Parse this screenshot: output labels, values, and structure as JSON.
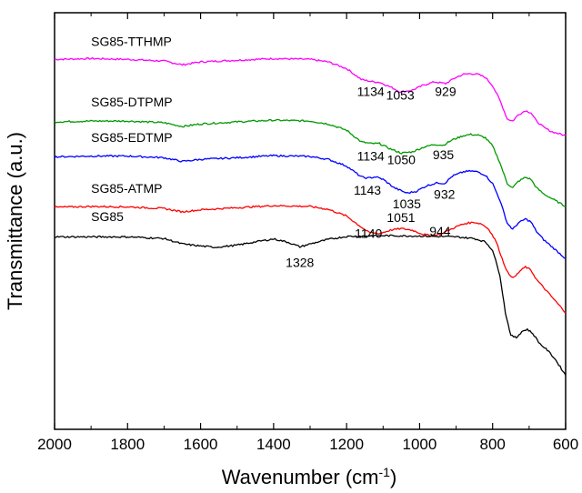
{
  "chart_data": {
    "type": "line",
    "title": "",
    "xlabel": "Wavenumber (cm",
    "xlabel_sup": "-1",
    "xlabel_close": ")",
    "ylabel": "Transmittance (a.u.)",
    "xlim": [
      2000,
      600
    ],
    "x_reversed": true,
    "ylim": [
      0,
      1
    ],
    "grid": false,
    "x_ticks": [
      "2000",
      "1800",
      "1600",
      "1400",
      "1200",
      "1000",
      "800",
      "600"
    ],
    "x_tick_values": [
      2000,
      1800,
      1600,
      1400,
      1200,
      1000,
      800,
      600
    ],
    "series": [
      {
        "name": "SG85-TTHMP",
        "color": "#ff00ff",
        "points": [
          [
            2000,
            0.888
          ],
          [
            1900,
            0.89
          ],
          [
            1800,
            0.888
          ],
          [
            1700,
            0.884
          ],
          [
            1650,
            0.875
          ],
          [
            1600,
            0.882
          ],
          [
            1500,
            0.886
          ],
          [
            1400,
            0.89
          ],
          [
            1300,
            0.888
          ],
          [
            1250,
            0.882
          ],
          [
            1200,
            0.866
          ],
          [
            1160,
            0.84
          ],
          [
            1134,
            0.835
          ],
          [
            1110,
            0.833
          ],
          [
            1080,
            0.822
          ],
          [
            1053,
            0.81
          ],
          [
            1020,
            0.814
          ],
          [
            990,
            0.826
          ],
          [
            960,
            0.834
          ],
          [
            929,
            0.83
          ],
          [
            900,
            0.845
          ],
          [
            880,
            0.852
          ],
          [
            860,
            0.854
          ],
          [
            840,
            0.852
          ],
          [
            820,
            0.845
          ],
          [
            800,
            0.825
          ],
          [
            780,
            0.79
          ],
          [
            760,
            0.745
          ],
          [
            745,
            0.74
          ],
          [
            730,
            0.755
          ],
          [
            710,
            0.765
          ],
          [
            695,
            0.76
          ],
          [
            680,
            0.74
          ],
          [
            660,
            0.725
          ],
          [
            640,
            0.715
          ],
          [
            620,
            0.71
          ],
          [
            600,
            0.705
          ]
        ]
      },
      {
        "name": "SG85-DTPMP",
        "color": "#009900",
        "points": [
          [
            2000,
            0.738
          ],
          [
            1900,
            0.74
          ],
          [
            1800,
            0.74
          ],
          [
            1700,
            0.736
          ],
          [
            1650,
            0.727
          ],
          [
            1600,
            0.733
          ],
          [
            1500,
            0.738
          ],
          [
            1400,
            0.742
          ],
          [
            1300,
            0.74
          ],
          [
            1250,
            0.733
          ],
          [
            1200,
            0.718
          ],
          [
            1160,
            0.69
          ],
          [
            1134,
            0.686
          ],
          [
            1110,
            0.686
          ],
          [
            1080,
            0.673
          ],
          [
            1050,
            0.663
          ],
          [
            1020,
            0.666
          ],
          [
            990,
            0.677
          ],
          [
            960,
            0.684
          ],
          [
            935,
            0.682
          ],
          [
            910,
            0.695
          ],
          [
            880,
            0.705
          ],
          [
            860,
            0.708
          ],
          [
            840,
            0.706
          ],
          [
            820,
            0.7
          ],
          [
            800,
            0.68
          ],
          [
            780,
            0.64
          ],
          [
            760,
            0.59
          ],
          [
            745,
            0.58
          ],
          [
            730,
            0.595
          ],
          [
            710,
            0.605
          ],
          [
            695,
            0.6
          ],
          [
            680,
            0.58
          ],
          [
            660,
            0.565
          ],
          [
            640,
            0.555
          ],
          [
            620,
            0.545
          ],
          [
            600,
            0.535
          ]
        ]
      },
      {
        "name": "SG85-EDTMP",
        "color": "#0000ff",
        "points": [
          [
            2000,
            0.654
          ],
          [
            1900,
            0.656
          ],
          [
            1800,
            0.656
          ],
          [
            1700,
            0.652
          ],
          [
            1650,
            0.643
          ],
          [
            1600,
            0.648
          ],
          [
            1500,
            0.652
          ],
          [
            1400,
            0.657
          ],
          [
            1300,
            0.655
          ],
          [
            1250,
            0.648
          ],
          [
            1200,
            0.632
          ],
          [
            1160,
            0.606
          ],
          [
            1143,
            0.603
          ],
          [
            1120,
            0.606
          ],
          [
            1100,
            0.6
          ],
          [
            1070,
            0.58
          ],
          [
            1035,
            0.567
          ],
          [
            1010,
            0.571
          ],
          [
            980,
            0.585
          ],
          [
            950,
            0.592
          ],
          [
            932,
            0.59
          ],
          [
            910,
            0.608
          ],
          [
            880,
            0.618
          ],
          [
            860,
            0.62
          ],
          [
            840,
            0.618
          ],
          [
            820,
            0.61
          ],
          [
            800,
            0.59
          ],
          [
            780,
            0.55
          ],
          [
            760,
            0.495
          ],
          [
            745,
            0.48
          ],
          [
            730,
            0.495
          ],
          [
            710,
            0.505
          ],
          [
            695,
            0.498
          ],
          [
            680,
            0.475
          ],
          [
            660,
            0.455
          ],
          [
            640,
            0.44
          ],
          [
            620,
            0.425
          ],
          [
            600,
            0.41
          ]
        ]
      },
      {
        "name": "SG85-ATMP",
        "color": "#ff0000",
        "points": [
          [
            2000,
            0.533
          ],
          [
            1900,
            0.535
          ],
          [
            1800,
            0.534
          ],
          [
            1700,
            0.53
          ],
          [
            1650,
            0.522
          ],
          [
            1600,
            0.527
          ],
          [
            1500,
            0.532
          ],
          [
            1400,
            0.537
          ],
          [
            1300,
            0.535
          ],
          [
            1250,
            0.528
          ],
          [
            1200,
            0.512
          ],
          [
            1170,
            0.492
          ],
          [
            1140,
            0.473
          ],
          [
            1110,
            0.47
          ],
          [
            1080,
            0.478
          ],
          [
            1051,
            0.482
          ],
          [
            1020,
            0.478
          ],
          [
            990,
            0.468
          ],
          [
            970,
            0.465
          ],
          [
            944,
            0.468
          ],
          [
            920,
            0.478
          ],
          [
            890,
            0.49
          ],
          [
            870,
            0.495
          ],
          [
            850,
            0.497
          ],
          [
            830,
            0.493
          ],
          [
            810,
            0.48
          ],
          [
            790,
            0.45
          ],
          [
            770,
            0.4
          ],
          [
            755,
            0.37
          ],
          [
            740,
            0.365
          ],
          [
            725,
            0.38
          ],
          [
            710,
            0.39
          ],
          [
            695,
            0.382
          ],
          [
            680,
            0.36
          ],
          [
            660,
            0.34
          ],
          [
            640,
            0.32
          ],
          [
            620,
            0.3
          ],
          [
            600,
            0.28
          ]
        ]
      },
      {
        "name": "SG85",
        "color": "#000000",
        "points": [
          [
            2000,
            0.462
          ],
          [
            1900,
            0.462
          ],
          [
            1800,
            0.462
          ],
          [
            1700,
            0.458
          ],
          [
            1650,
            0.445
          ],
          [
            1600,
            0.44
          ],
          [
            1560,
            0.437
          ],
          [
            1500,
            0.442
          ],
          [
            1450,
            0.45
          ],
          [
            1400,
            0.457
          ],
          [
            1360,
            0.449
          ],
          [
            1328,
            0.438
          ],
          [
            1300,
            0.445
          ],
          [
            1250,
            0.456
          ],
          [
            1200,
            0.463
          ],
          [
            1100,
            0.465
          ],
          [
            1000,
            0.464
          ],
          [
            900,
            0.462
          ],
          [
            850,
            0.458
          ],
          [
            820,
            0.45
          ],
          [
            800,
            0.43
          ],
          [
            780,
            0.37
          ],
          [
            765,
            0.28
          ],
          [
            750,
            0.225
          ],
          [
            735,
            0.22
          ],
          [
            720,
            0.235
          ],
          [
            705,
            0.24
          ],
          [
            690,
            0.23
          ],
          [
            670,
            0.205
          ],
          [
            650,
            0.19
          ],
          [
            630,
            0.17
          ],
          [
            615,
            0.15
          ],
          [
            600,
            0.13
          ]
        ]
      }
    ],
    "series_labels": [
      {
        "text": "SG85-TTHMP",
        "x": 1900,
        "y": 0.92
      },
      {
        "text": "SG85-DTPMP",
        "x": 1900,
        "y": 0.775
      },
      {
        "text": "SG85-EDTMP",
        "x": 1900,
        "y": 0.69
      },
      {
        "text": "SG85-ATMP",
        "x": 1900,
        "y": 0.568
      },
      {
        "text": "SG85",
        "x": 1900,
        "y": 0.5
      }
    ],
    "annotations": [
      {
        "text": "1134",
        "x": 1134,
        "y": 0.8
      },
      {
        "text": "1053",
        "x": 1053,
        "y": 0.792
      },
      {
        "text": "929",
        "x": 929,
        "y": 0.8
      },
      {
        "text": "1134",
        "x": 1134,
        "y": 0.645
      },
      {
        "text": "1050",
        "x": 1050,
        "y": 0.636
      },
      {
        "text": "935",
        "x": 935,
        "y": 0.648
      },
      {
        "text": "1143",
        "x": 1143,
        "y": 0.563
      },
      {
        "text": "1035",
        "x": 1035,
        "y": 0.531
      },
      {
        "text": "932",
        "x": 932,
        "y": 0.553
      },
      {
        "text": "1051",
        "x": 1051,
        "y": 0.498
      },
      {
        "text": "1140",
        "x": 1140,
        "y": 0.46
      },
      {
        "text": "944",
        "x": 944,
        "y": 0.465
      },
      {
        "text": "1328",
        "x": 1328,
        "y": 0.39
      }
    ]
  }
}
